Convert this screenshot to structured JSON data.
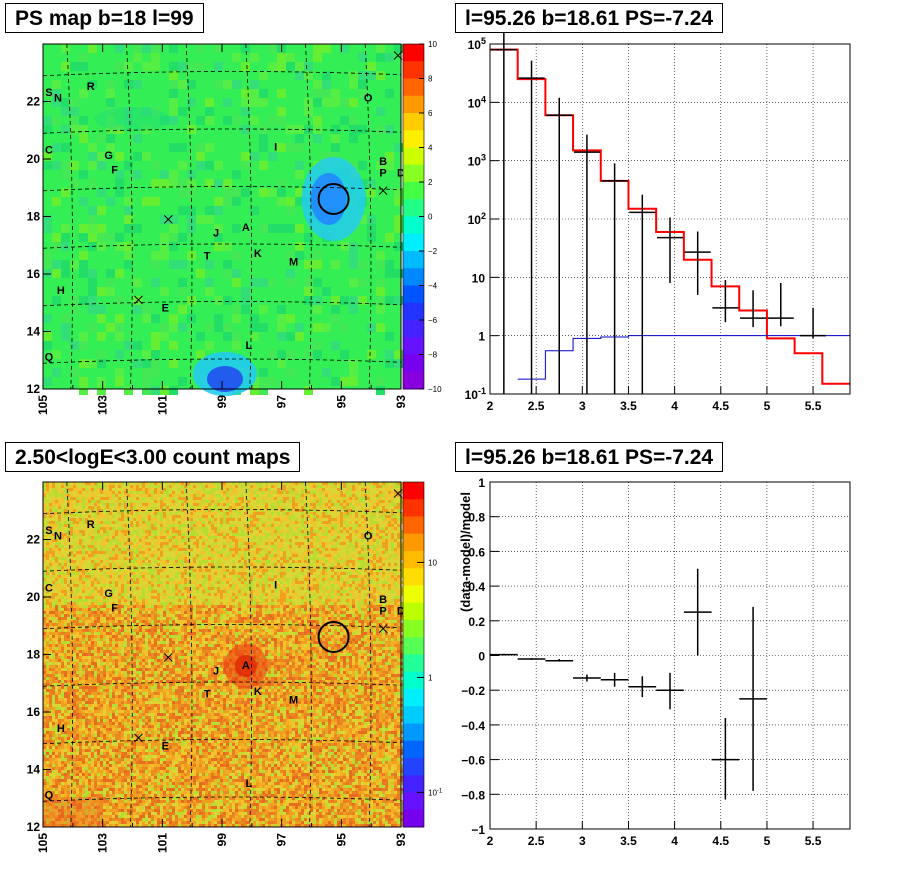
{
  "panels": {
    "ps_title": "PS map b=18 l=99",
    "spectrum_title": "l=95.26 b=18.61 PS=-7.24",
    "count_title": "2.50<logE<3.00 count maps",
    "residual_title": "l=95.26 b=18.61 PS=-7.24"
  },
  "colors": {
    "ps_background": "#33ee55",
    "count_background": "#f0a020",
    "data_series": "#000000",
    "model_series": "#ff0000",
    "background_series": "#0000cc",
    "circle": "#000000"
  },
  "sky_labels": [
    {
      "text": "S"
    },
    {
      "text": "N"
    },
    {
      "text": "R"
    },
    {
      "text": "O"
    },
    {
      "text": "C"
    },
    {
      "text": "G"
    },
    {
      "text": "I"
    },
    {
      "text": "F"
    },
    {
      "text": "B"
    },
    {
      "text": "P"
    },
    {
      "text": "D"
    },
    {
      "text": "J"
    },
    {
      "text": "A"
    },
    {
      "text": "T"
    },
    {
      "text": "K"
    },
    {
      "text": "M"
    },
    {
      "text": "H"
    },
    {
      "text": "E"
    },
    {
      "text": "Q"
    },
    {
      "text": "L"
    }
  ],
  "chart_data": [
    {
      "type": "heatmap",
      "title": "PS map b=18 l=99",
      "x_ticks": [
        "105",
        "103",
        "101",
        "99",
        "97",
        "95",
        "93"
      ],
      "y_ticks": [
        "12",
        "14",
        "16",
        "18",
        "20",
        "22"
      ],
      "xlim": [
        105,
        93
      ],
      "ylim": [
        12,
        24
      ],
      "colorbar_ticks": [
        "10",
        "8",
        "6",
        "4",
        "2",
        "0",
        "−2",
        "−4",
        "−6",
        "−8",
        "−10"
      ],
      "colorbar_range": [
        -10,
        10
      ],
      "marked_source": {
        "l": 95.26,
        "b": 18.61
      }
    },
    {
      "type": "line",
      "title": "l=95.26 b=18.61 PS=-7.24",
      "log_y": true,
      "xlim": [
        2,
        5.9
      ],
      "ylim": [
        0.1,
        100000
      ],
      "x_ticks": [
        "2",
        "2.5",
        "3",
        "3.5",
        "4",
        "4.5",
        "5",
        "5.5"
      ],
      "y_ticks": [
        "10^-1",
        "1",
        "10",
        "10^2",
        "10^3",
        "10^4",
        "10^5"
      ],
      "series": [
        {
          "values": [
            [
              2.0,
              80000
            ],
            [
              2.3,
              25000
            ],
            [
              2.6,
              6000
            ],
            [
              2.9,
              1500
            ],
            [
              3.2,
              450
            ],
            [
              3.5,
              150
            ],
            [
              3.8,
              60
            ],
            [
              4.1,
              20
            ],
            [
              4.4,
              7
            ],
            [
              4.7,
              2.7
            ],
            [
              5.0,
              0.9
            ],
            [
              5.3,
              0.5
            ],
            [
              5.6,
              0.15
            ]
          ]
        },
        {
          "values": [
            [
              2.3,
              0.18
            ],
            [
              2.6,
              0.55
            ],
            [
              2.9,
              0.9
            ],
            [
              3.2,
              0.95
            ],
            [
              3.5,
              1.0
            ],
            [
              3.8,
              1.0
            ],
            [
              4.1,
              1.0
            ],
            [
              4.4,
              1.0
            ],
            [
              4.7,
              1.0
            ],
            [
              5.0,
              1.0
            ],
            [
              5.3,
              1.0
            ],
            [
              5.6,
              1.0
            ]
          ]
        },
        {
          "points": [
            {
              "x": 2.15,
              "y": 80000,
              "yerr": [
                80000,
                80000
              ]
            },
            {
              "x": 2.45,
              "y": 26000,
              "yerr": [
                26000,
                26000
              ]
            },
            {
              "x": 2.75,
              "y": 6000,
              "yerr": [
                6000,
                6000
              ]
            },
            {
              "x": 3.05,
              "y": 1400,
              "yerr": [
                1400,
                1400
              ]
            },
            {
              "x": 3.35,
              "y": 450,
              "yerr": [
                450,
                450
              ]
            },
            {
              "x": 3.65,
              "y": 130,
              "yerr": [
                130,
                130
              ]
            },
            {
              "x": 3.95,
              "y": 48,
              "yerr": [
                40,
                58
              ]
            },
            {
              "x": 4.25,
              "y": 27,
              "yerr": [
                22,
                34
              ]
            },
            {
              "x": 4.55,
              "y": 3,
              "yerr": [
                1.3,
                6
              ]
            },
            {
              "x": 4.85,
              "y": 2,
              "yerr": [
                0.6,
                4
              ]
            },
            {
              "x": 5.15,
              "y": 2,
              "yerr": [
                0.55,
                6
              ]
            },
            {
              "x": 5.5,
              "y": 1,
              "yerr": [
                0.1,
                2
              ]
            }
          ]
        }
      ]
    },
    {
      "type": "heatmap",
      "title": "2.50<logE<3.00 count maps",
      "x_ticks": [
        "105",
        "103",
        "101",
        "99",
        "97",
        "95",
        "93"
      ],
      "y_ticks": [
        "12",
        "14",
        "16",
        "18",
        "20",
        "22"
      ],
      "xlim": [
        105,
        93
      ],
      "ylim": [
        12,
        24
      ],
      "colorbar_ticks": [
        "10",
        "1",
        "10^-1"
      ],
      "colorbar_log": true,
      "colorbar_range": [
        0.05,
        50
      ],
      "marked_source": {
        "l": 95.26,
        "b": 18.61
      }
    },
    {
      "type": "scatter",
      "title": "l=95.26 b=18.61 PS=-7.24",
      "ylabel": "(data-model)/model",
      "xlim": [
        2,
        5.9
      ],
      "ylim": [
        -1,
        1
      ],
      "x_ticks": [
        "2",
        "2.5",
        "3",
        "3.5",
        "4",
        "4.5",
        "5",
        "5.5"
      ],
      "y_ticks": [
        "−1",
        "−0.8",
        "−0.6",
        "−0.4",
        "−0.2",
        "0",
        "0.2",
        "0.4",
        "0.6",
        "0.8",
        "1"
      ],
      "points": [
        {
          "x": 2.15,
          "y": 0.005,
          "xerr": 0.15,
          "yerr": [
            0.005,
            0.005
          ]
        },
        {
          "x": 2.45,
          "y": -0.02,
          "xerr": 0.15,
          "yerr": [
            0.005,
            0.005
          ]
        },
        {
          "x": 2.75,
          "y": -0.03,
          "xerr": 0.15,
          "yerr": [
            0.005,
            0.01
          ]
        },
        {
          "x": 3.05,
          "y": -0.13,
          "xerr": 0.15,
          "yerr": [
            0.02,
            0.02
          ]
        },
        {
          "x": 3.35,
          "y": -0.14,
          "xerr": 0.15,
          "yerr": [
            0.04,
            0.04
          ]
        },
        {
          "x": 3.65,
          "y": -0.18,
          "xerr": 0.15,
          "yerr": [
            0.06,
            0.06
          ]
        },
        {
          "x": 3.95,
          "y": -0.2,
          "xerr": 0.15,
          "yerr": [
            0.11,
            0.1
          ]
        },
        {
          "x": 4.25,
          "y": 0.25,
          "xerr": 0.15,
          "yerr": [
            0.25,
            0.25
          ]
        },
        {
          "x": 4.55,
          "y": -0.6,
          "xerr": 0.15,
          "yerr": [
            0.23,
            0.24
          ]
        },
        {
          "x": 4.85,
          "y": -0.25,
          "xerr": 0.15,
          "yerr": [
            0.53,
            0.53
          ]
        }
      ]
    }
  ]
}
